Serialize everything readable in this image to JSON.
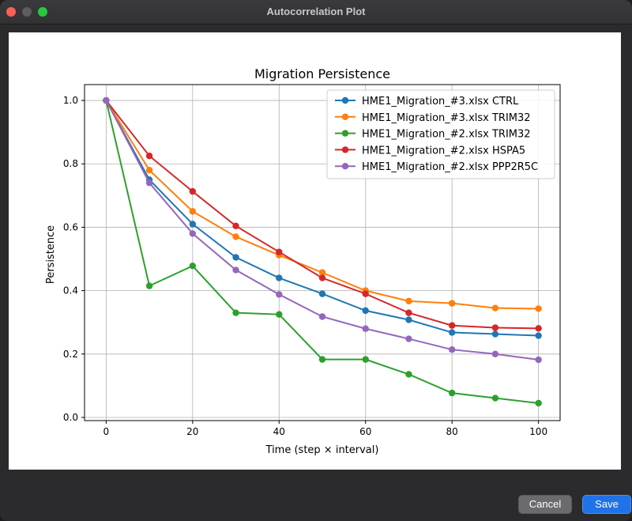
{
  "window": {
    "title": "Autocorrelation Plot"
  },
  "buttons": {
    "cancel_label": "Cancel",
    "save_label": "Save"
  },
  "colors": {
    "accent": "#1f72e8"
  },
  "chart_data": {
    "type": "line",
    "title": "Migration Persistence",
    "xlabel": "Time (step × interval)",
    "ylabel": "Persistence",
    "xlim": [
      -5,
      105
    ],
    "ylim": [
      -0.01,
      1.05
    ],
    "xticks": [
      0,
      20,
      40,
      60,
      80,
      100
    ],
    "yticks": [
      0.0,
      0.2,
      0.4,
      0.6,
      0.8,
      1.0
    ],
    "grid": true,
    "legend_position": "top-right",
    "x": [
      0,
      10,
      20,
      30,
      40,
      50,
      60,
      70,
      80,
      90,
      100
    ],
    "series": [
      {
        "name": "HME1_Migration_#3.xlsx CTRL",
        "color": "#1f77b4",
        "values": [
          1.0,
          0.75,
          0.61,
          0.505,
          0.44,
          0.39,
          0.337,
          0.308,
          0.268,
          0.263,
          0.258
        ]
      },
      {
        "name": "HME1_Migration_#3.xlsx TRIM32",
        "color": "#ff7f0e",
        "values": [
          1.0,
          0.78,
          0.65,
          0.57,
          0.512,
          0.457,
          0.4,
          0.367,
          0.36,
          0.345,
          0.343
        ]
      },
      {
        "name": "HME1_Migration_#2.xlsx TRIM32",
        "color": "#2ca02c",
        "values": [
          1.0,
          0.415,
          0.478,
          0.33,
          0.325,
          0.183,
          0.183,
          0.136,
          0.077,
          0.061,
          0.045
        ]
      },
      {
        "name": "HME1_Migration_#2.xlsx HSPA5",
        "color": "#d62728",
        "values": [
          1.0,
          0.825,
          0.713,
          0.604,
          0.522,
          0.44,
          0.39,
          0.33,
          0.29,
          0.283,
          0.281
        ]
      },
      {
        "name": "HME1_Migration_#2.xlsx PPP2R5C",
        "color": "#9467bd",
        "values": [
          1.0,
          0.74,
          0.58,
          0.465,
          0.388,
          0.318,
          0.28,
          0.248,
          0.214,
          0.2,
          0.182
        ]
      }
    ]
  }
}
